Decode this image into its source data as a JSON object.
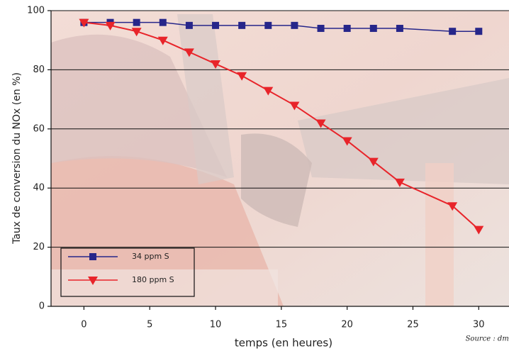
{
  "chart_data": {
    "type": "line",
    "x_label": "temps (en heures)",
    "y_label": "Taux de conversion du NOx (en %)",
    "source": "Source : dmc",
    "x": [
      0,
      2,
      4,
      6,
      8,
      10,
      12,
      14,
      16,
      18,
      20,
      22,
      24,
      28,
      30
    ],
    "series": [
      {
        "name": "34 ppm S",
        "color": "#26268a",
        "marker": "square",
        "values": [
          96,
          96,
          96,
          96,
          95,
          95,
          95,
          95,
          95,
          94,
          94,
          94,
          94,
          93,
          93
        ]
      },
      {
        "name": "180 ppm S",
        "color": "#e8242a",
        "marker": "triangle-down",
        "values": [
          96,
          95,
          93,
          90,
          86,
          82,
          78,
          73,
          68,
          62,
          56,
          49,
          42,
          34,
          26
        ]
      }
    ],
    "xlim": [
      -2.5,
      32.3
    ],
    "ylim": [
      0,
      100
    ],
    "xticks": [
      0,
      5,
      10,
      15,
      20,
      25,
      30
    ],
    "yticks": [
      0,
      20,
      40,
      60,
      80,
      100
    ],
    "grid": true,
    "legend": "lower left"
  }
}
